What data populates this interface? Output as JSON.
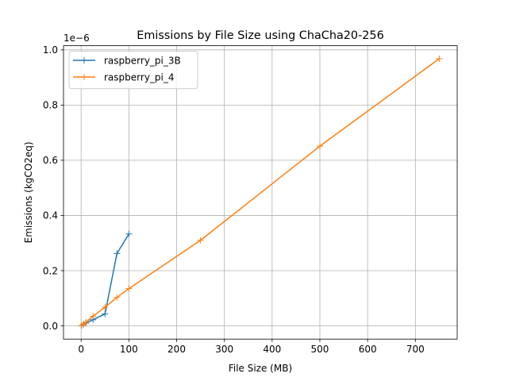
{
  "chart_data": {
    "type": "line",
    "title": "Emissions by File Size using ChaCha20-256",
    "xlabel": "File Size (MB)",
    "ylabel": "Emissions (kgCO2eq)",
    "y_offset_label": "1e−6",
    "xlim": [
      -36.9,
      787.6
    ],
    "ylim": [
      -0.048,
      1.015
    ],
    "x_ticks": [
      0,
      100,
      200,
      300,
      400,
      500,
      600,
      700
    ],
    "x_tick_labels": [
      "0",
      "100",
      "200",
      "300",
      "400",
      "500",
      "600",
      "700"
    ],
    "y_ticks": [
      0.0,
      0.2,
      0.4,
      0.6,
      0.8,
      1.0
    ],
    "y_tick_labels": [
      "0.0",
      "0.2",
      "0.4",
      "0.6",
      "0.8",
      "1.0"
    ],
    "grid": true,
    "legend_position": "top-left",
    "marker": "+",
    "series": [
      {
        "name": "raspberry_pi_3B",
        "color": "#1f77b4",
        "x": [
          1,
          5,
          10,
          25,
          50,
          75,
          100
        ],
        "y": [
          0.001,
          0.005,
          0.01,
          0.022,
          0.043,
          0.262,
          0.333
        ]
      },
      {
        "name": "raspberry_pi_4",
        "color": "#ff7f0e",
        "x": [
          1,
          5,
          10,
          25,
          50,
          75,
          100,
          250,
          500,
          750
        ],
        "y": [
          0.001,
          0.006,
          0.013,
          0.035,
          0.068,
          0.103,
          0.135,
          0.31,
          0.651,
          0.968
        ]
      }
    ]
  }
}
